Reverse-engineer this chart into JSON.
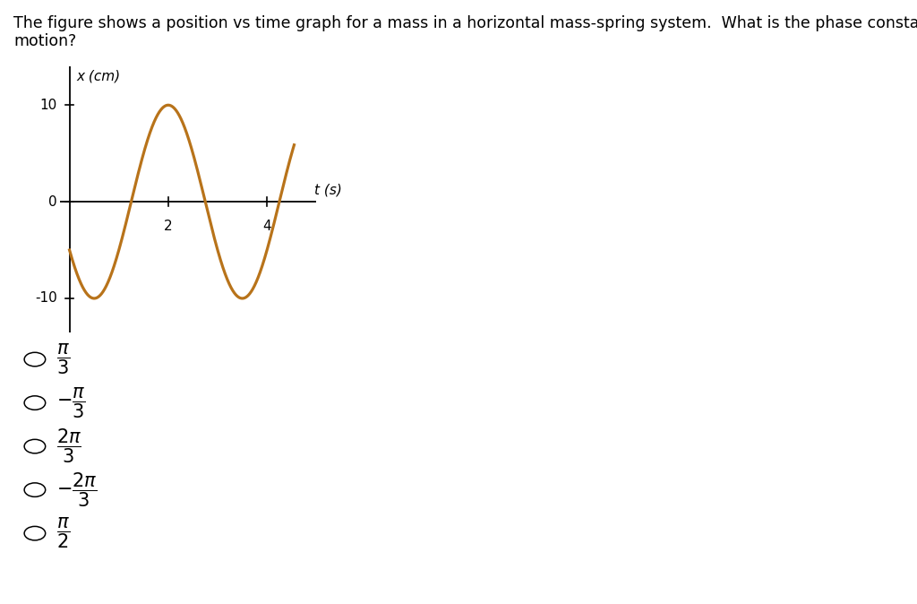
{
  "title_line1": "The figure shows a position vs time graph for a mass in a horizontal mass-spring system.  What is the phase constant for this",
  "title_line2": "motion?",
  "title_fontsize": 12.5,
  "xlabel": "t (s)",
  "ylabel": "x (cm)",
  "amplitude": 10,
  "omega": 2.0943951,
  "phase": 2.0943951,
  "t_start": 0,
  "t_end": 4.55,
  "ylim": [
    -13.5,
    14
  ],
  "xlim": [
    -0.2,
    5.0
  ],
  "curve_color": "#B8731A",
  "curve_lw": 2.3,
  "ytick_vals": [
    -10,
    0,
    10
  ],
  "xtick_vals": [
    2,
    4
  ],
  "bg_color": "#ffffff",
  "choices": [
    {
      "num": "\\pi",
      "den": "3",
      "sign": ""
    },
    {
      "num": "\\pi",
      "den": "3",
      "sign": "-"
    },
    {
      "num": "2\\pi",
      "den": "3",
      "sign": ""
    },
    {
      "num": "2\\pi",
      "den": "3",
      "sign": "-"
    },
    {
      "num": "\\pi",
      "den": "2",
      "sign": ""
    }
  ]
}
